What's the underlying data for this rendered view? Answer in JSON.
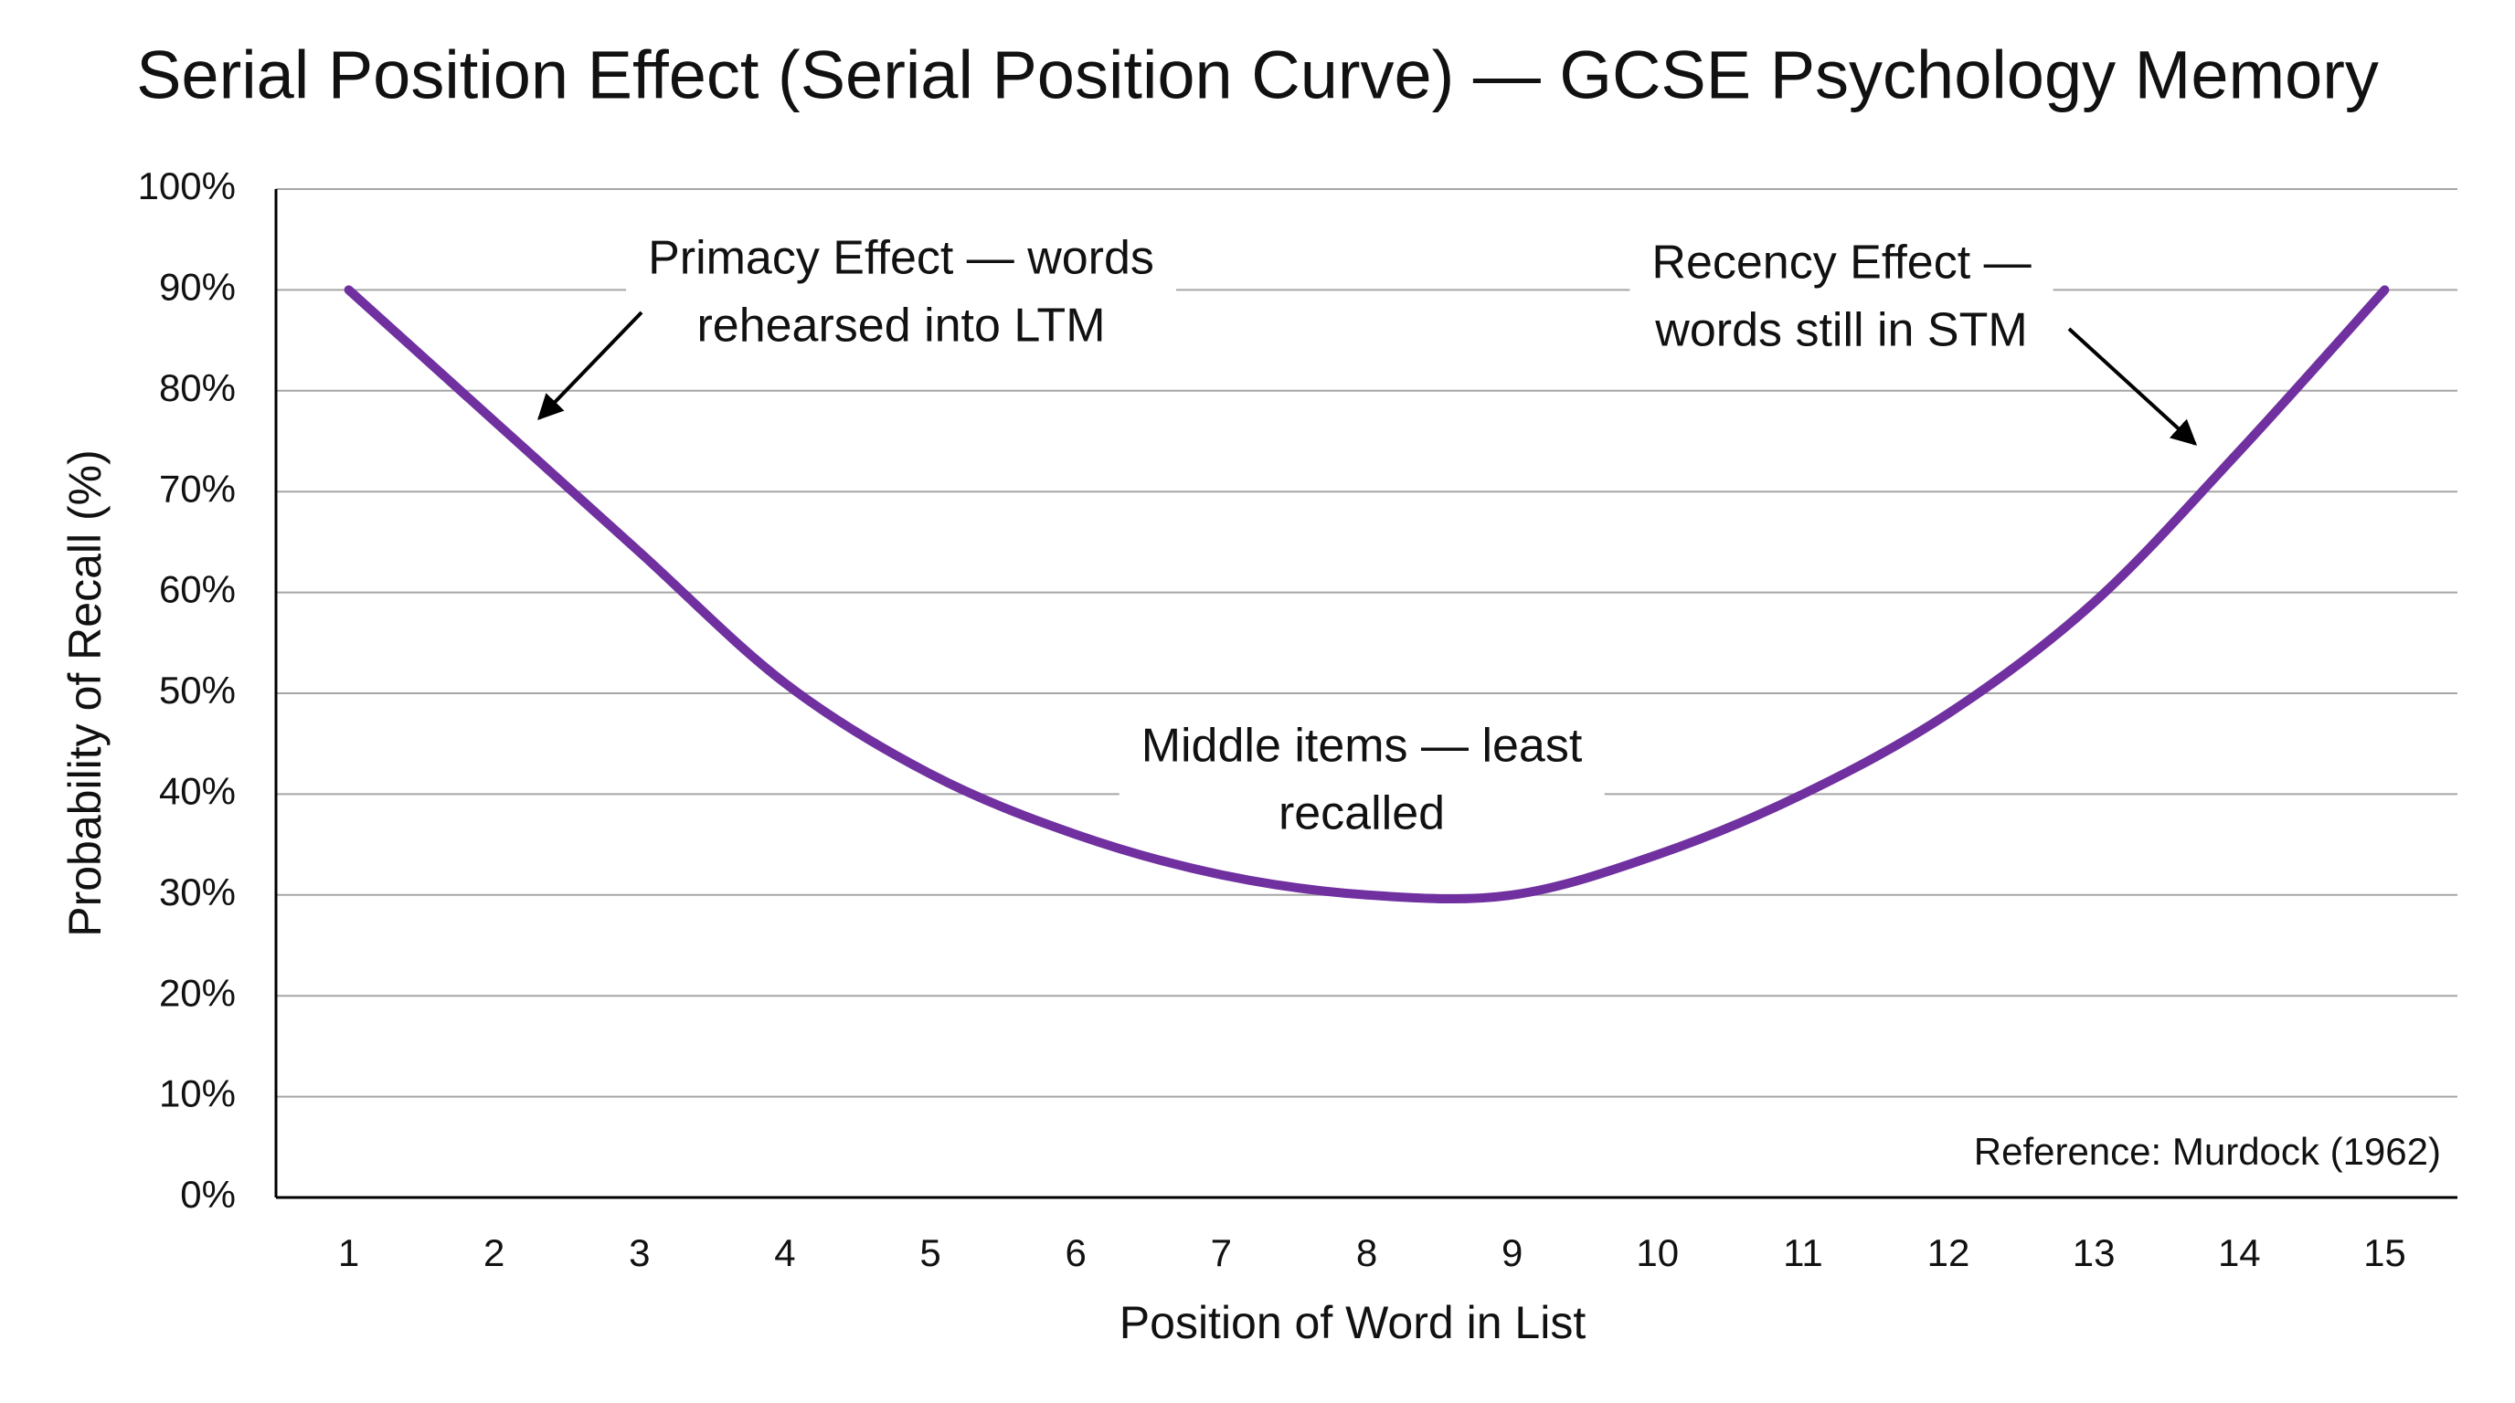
{
  "chart_data": {
    "type": "line",
    "title": "Serial Position Effect (Serial Position Curve) — GCSE Psychology Memory",
    "x_label": "Position of Word in List",
    "y_label": "Probability of Recall (%)",
    "x": [
      1,
      2,
      3,
      4,
      5,
      6,
      7,
      8,
      9,
      10,
      11,
      12,
      13,
      14,
      15
    ],
    "series": [
      {
        "name": "Probability of recall",
        "color": "#7030a0",
        "values": [
          90,
          77,
          64,
          51,
          42,
          36,
          32,
          30,
          30,
          34,
          40,
          48,
          59,
          74,
          90
        ]
      }
    ],
    "xlim": [
      0.5,
      15.5
    ],
    "xticks": [
      1,
      2,
      3,
      4,
      5,
      6,
      7,
      8,
      9,
      10,
      11,
      12,
      13,
      14,
      15
    ],
    "ylim": [
      0,
      100
    ],
    "yticks": [
      {
        "value": 0,
        "label": "0%"
      },
      {
        "value": 10,
        "label": "10%"
      },
      {
        "value": 20,
        "label": "20%"
      },
      {
        "value": 30,
        "label": "30%"
      },
      {
        "value": 40,
        "label": "40%"
      },
      {
        "value": 50,
        "label": "50%"
      },
      {
        "value": 60,
        "label": "60%"
      },
      {
        "value": 70,
        "label": "70%"
      },
      {
        "value": 80,
        "label": "80%"
      },
      {
        "value": 90,
        "label": "90%"
      },
      {
        "value": 100,
        "label": "100%"
      }
    ],
    "grid": true,
    "annotations": [
      {
        "text": [
          "Primacy Effect — words",
          "rehearsed into LTM"
        ]
      },
      {
        "text": [
          "Recency Effect —",
          "words still in STM"
        ]
      },
      {
        "text": [
          "Middle items — least",
          "recalled"
        ]
      },
      {
        "text": [
          "Reference: Murdock (1962)"
        ]
      }
    ]
  }
}
